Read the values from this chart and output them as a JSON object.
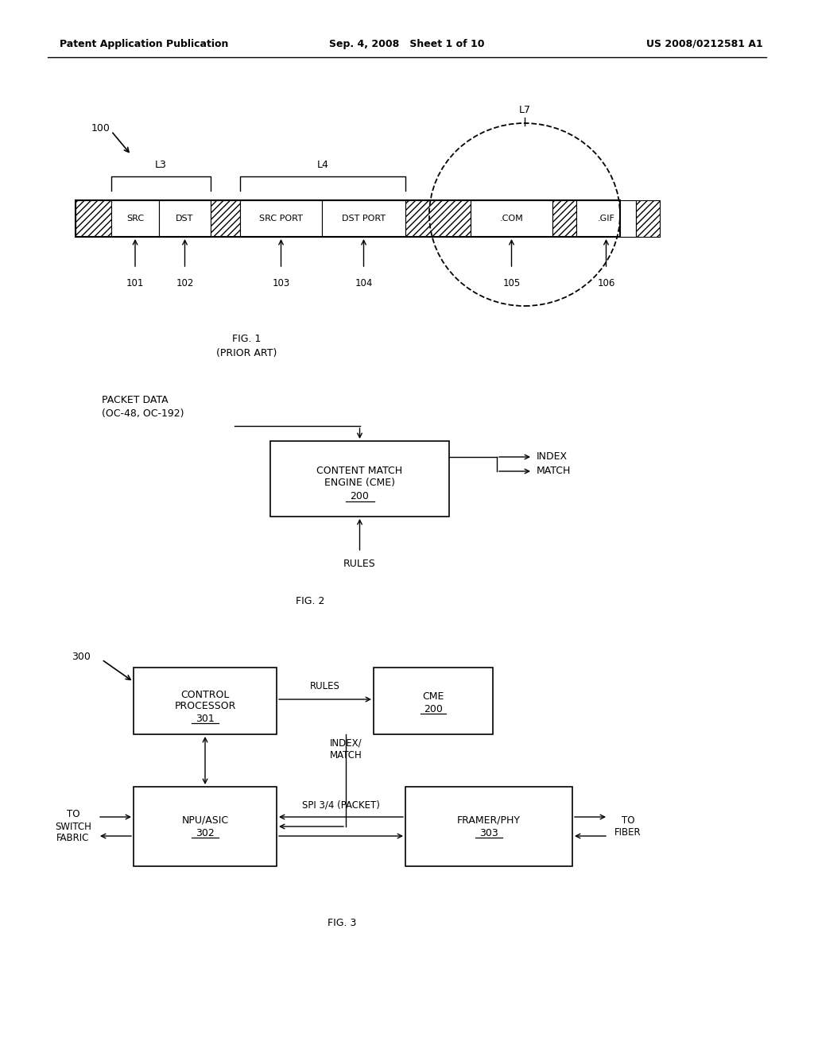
{
  "bg_color": "#ffffff",
  "header_left": "Patent Application Publication",
  "header_mid": "Sep. 4, 2008   Sheet 1 of 10",
  "header_right": "US 2008/0212581 A1",
  "fig1_caption": "FIG. 1\n(PRIOR ART)",
  "fig2_caption": "FIG. 2",
  "fig3_caption": "FIG. 3"
}
